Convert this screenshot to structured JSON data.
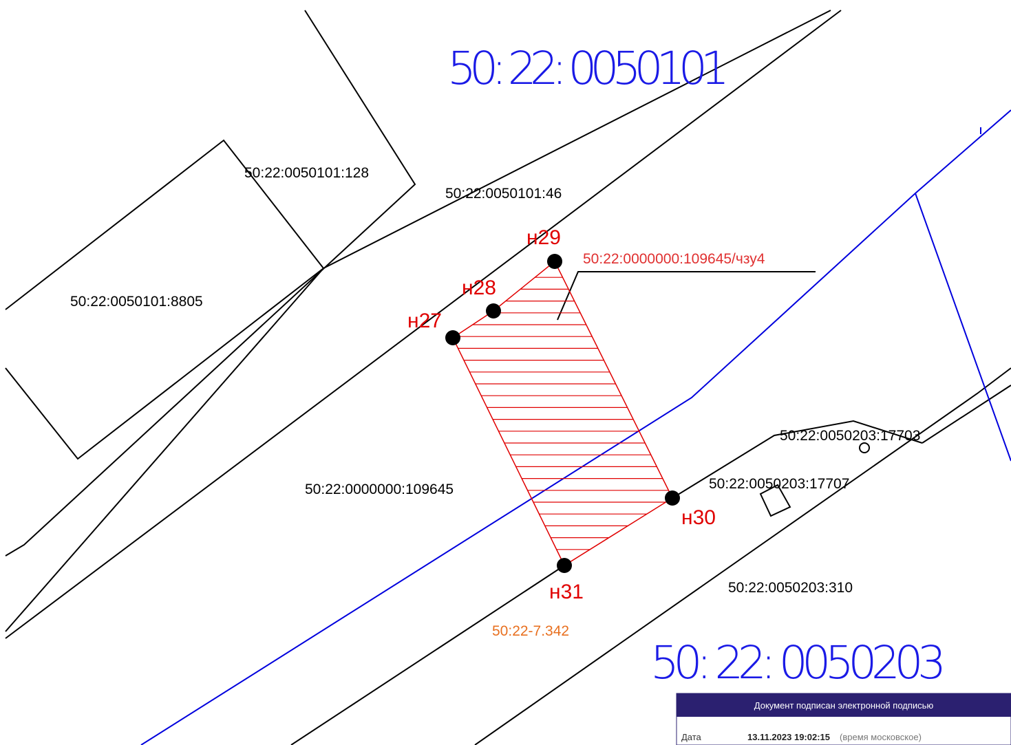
{
  "map": {
    "quarters": [
      "50: 22: 0050101",
      "50: 22: 0050203"
    ],
    "parcels": [
      "50:22:0050101:128",
      "50:22:0050101:46",
      "50:22:0050101:8805",
      "50:22:0000000:109645",
      "50:22:0050203:17703",
      "50:22:0050203:17707",
      "50:22:0050203:310"
    ],
    "new_parcel": "50:22:0000000:109645/чзу4",
    "zone": "50:22-7.342",
    "points": [
      "н27",
      "н28",
      "н29",
      "н30",
      "н31"
    ]
  },
  "signature": {
    "header": "Документ подписан электронной подписью",
    "date_label": "Дата",
    "date_value": "13.11.2023 19:02:15",
    "date_note": "(время московское)"
  }
}
